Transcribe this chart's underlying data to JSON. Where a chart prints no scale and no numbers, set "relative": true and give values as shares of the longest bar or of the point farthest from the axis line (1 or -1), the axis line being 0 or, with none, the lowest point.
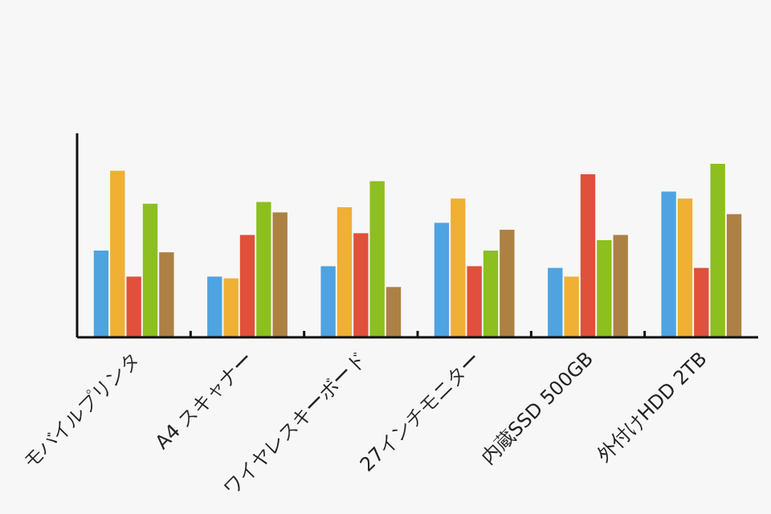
{
  "chart_data": {
    "type": "bar",
    "relative": true,
    "categories": [
      "モバイルプリンタ",
      "A4 スキャナー",
      "ワイヤレスキーボード",
      "27インチモニター",
      "内蔵SSD 500GB",
      "外付けHDD 2TB"
    ],
    "series": [
      {
        "color": "#4fa3e0",
        "values": [
          0.5,
          0.35,
          0.41,
          0.66,
          0.4,
          0.84
        ]
      },
      {
        "color": "#efb033",
        "values": [
          0.96,
          0.34,
          0.75,
          0.8,
          0.35,
          0.8
        ]
      },
      {
        "color": "#e0503a",
        "values": [
          0.35,
          0.59,
          0.6,
          0.41,
          0.94,
          0.4
        ]
      },
      {
        "color": "#8cbf1f",
        "values": [
          0.77,
          0.78,
          0.9,
          0.5,
          0.56,
          1
        ]
      },
      {
        "color": "#ad8044",
        "values": [
          0.49,
          0.72,
          0.29,
          0.62,
          0.59,
          0.71
        ]
      }
    ]
  }
}
